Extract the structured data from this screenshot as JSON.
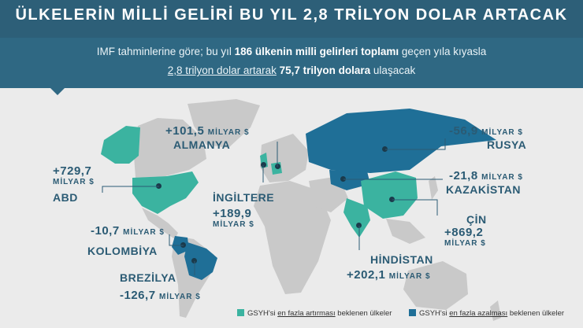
{
  "header": {
    "title": "ÜLKELERİN MİLLİ GELİRİ BU YIL 2,8 TRİLYON DOLAR ARTACAK",
    "line1_a": "IMF tahminlerine göre; bu yıl ",
    "line1_b": "186 ülkenin milli gelirleri toplamı",
    "line1_c": " geçen yıla kıyasla",
    "line2_a": "2,8 trilyon dolar artarak",
    "line2_b": " ",
    "line2_c": "75,7 trilyon dolara",
    "line2_d": " ulaşacak"
  },
  "countries": {
    "abd": {
      "value": "+729,7",
      "unit": "MİLYAR $",
      "name": "ABD",
      "trend": "increase"
    },
    "almanya": {
      "value": "+101,5",
      "unit": "MİLYAR $",
      "name": "ALMANYA",
      "trend": "increase"
    },
    "ingiltere": {
      "value": "+189,9",
      "unit": "MİLYAR $",
      "name": "İNGİLTERE",
      "trend": "increase"
    },
    "rusya": {
      "value": "-56,9",
      "unit": "MİLYAR $",
      "name": "RUSYA",
      "trend": "decrease"
    },
    "kazakistan": {
      "value": "-21,8",
      "unit": "MİLYAR $",
      "name": "KAZAKİSTAN",
      "trend": "decrease"
    },
    "cin": {
      "value": "+869,2",
      "unit": "MİLYAR $",
      "name": "ÇİN",
      "trend": "increase"
    },
    "hindistan": {
      "value": "+202,1",
      "unit": "MİLYAR $",
      "name": "HİNDİSTAN",
      "trend": "increase"
    },
    "kolombiya": {
      "value": "-10,7",
      "unit": "MİLYAR $",
      "name": "KOLOMBİYA",
      "trend": "decrease"
    },
    "brezilya": {
      "value": "-126,7",
      "unit": "MİLYAR $",
      "name": "BREZİLYA",
      "trend": "decrease"
    }
  },
  "legend": {
    "increase_a": "GSYH'si ",
    "increase_b": "en fazla artırması",
    "increase_c": " beklenen ülkeler",
    "decrease_a": "GSYH'si ",
    "decrease_b": "en fazla azalması",
    "decrease_c": " beklenen ülkeler"
  },
  "colors": {
    "header": "#2d5f78",
    "increase": "#3bb3a0",
    "decrease": "#1f6f97",
    "land": "#c9c9c9",
    "background": "#ebebeb"
  }
}
